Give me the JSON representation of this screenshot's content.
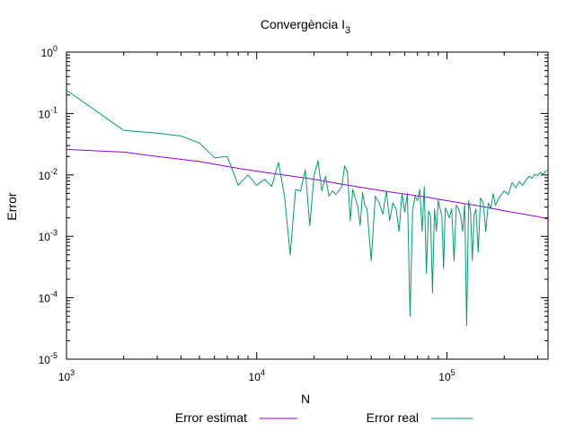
{
  "chart_data": {
    "type": "line",
    "title": "Convergència I",
    "title_subscript": "3",
    "xlabel": "N",
    "ylabel": "Error",
    "x_scale": "log",
    "y_scale": "log",
    "xlim": [
      1000,
      340000
    ],
    "ylim": [
      1e-05,
      1
    ],
    "x_ticks": [
      {
        "value": 1000,
        "base": "10",
        "exp": "3"
      },
      {
        "value": 10000,
        "base": "10",
        "exp": "4"
      },
      {
        "value": 100000,
        "base": "10",
        "exp": "5"
      }
    ],
    "y_ticks": [
      {
        "value": 1,
        "base": "10",
        "exp": "0"
      },
      {
        "value": 0.1,
        "base": "10",
        "exp": "-1"
      },
      {
        "value": 0.01,
        "base": "10",
        "exp": "-2"
      },
      {
        "value": 0.001,
        "base": "10",
        "exp": "-3"
      },
      {
        "value": 0.0001,
        "base": "10",
        "exp": "-4"
      },
      {
        "value": 1e-05,
        "base": "10",
        "exp": "-5"
      }
    ],
    "grid": false,
    "legend_position": "bottom",
    "series": [
      {
        "name": "Error estimat",
        "color": "#9400d3",
        "points": [
          [
            1000,
            0.026
          ],
          [
            2000,
            0.0235
          ],
          [
            3000,
            0.02
          ],
          [
            5000,
            0.0165
          ],
          [
            8000,
            0.0128
          ],
          [
            10000,
            0.0115
          ],
          [
            20000,
            0.0085
          ],
          [
            30000,
            0.0068
          ],
          [
            50000,
            0.0053
          ],
          [
            80000,
            0.0043
          ],
          [
            100000,
            0.0038
          ],
          [
            150000,
            0.0031
          ],
          [
            200000,
            0.0026
          ],
          [
            300000,
            0.0021
          ],
          [
            340000,
            0.0019
          ]
        ]
      },
      {
        "name": "Error real",
        "color": "#009e73",
        "points": [
          [
            1000,
            0.24
          ],
          [
            2000,
            0.053
          ],
          [
            3000,
            0.048
          ],
          [
            4000,
            0.043
          ],
          [
            5000,
            0.033
          ],
          [
            6000,
            0.019
          ],
          [
            7000,
            0.02
          ],
          [
            8000,
            0.0068
          ],
          [
            9000,
            0.01
          ],
          [
            10000,
            0.0068
          ],
          [
            11000,
            0.0085
          ],
          [
            12000,
            0.0065
          ],
          [
            13000,
            0.016
          ],
          [
            14000,
            0.0045
          ],
          [
            15000,
            0.0005
          ],
          [
            16000,
            0.0058
          ],
          [
            17000,
            0.0055
          ],
          [
            18000,
            0.012
          ],
          [
            19000,
            0.0015
          ],
          [
            20000,
            0.0095
          ],
          [
            21000,
            0.017
          ],
          [
            22000,
            0.0055
          ],
          [
            23000,
            0.0095
          ],
          [
            24000,
            0.0045
          ],
          [
            25000,
            0.0055
          ],
          [
            26000,
            0.0048
          ],
          [
            27000,
            0.0055
          ],
          [
            28000,
            0.0065
          ],
          [
            29000,
            0.014
          ],
          [
            30000,
            0.011
          ],
          [
            31000,
            0.0018
          ],
          [
            32000,
            0.0058
          ],
          [
            33000,
            0.0042
          ],
          [
            34000,
            0.003
          ],
          [
            35000,
            0.0015
          ],
          [
            36000,
            0.0052
          ],
          [
            37000,
            0.0032
          ],
          [
            38000,
            0.0028
          ],
          [
            40000,
            0.0004
          ],
          [
            42000,
            0.0045
          ],
          [
            44000,
            0.0035
          ],
          [
            46000,
            0.0023
          ],
          [
            48000,
            0.0055
          ],
          [
            50000,
            0.0018
          ],
          [
            52000,
            0.0035
          ],
          [
            54000,
            0.0028
          ],
          [
            56000,
            0.0012
          ],
          [
            58000,
            0.005
          ],
          [
            60000,
            0.0025
          ],
          [
            62000,
            0.005
          ],
          [
            64000,
            5e-05
          ],
          [
            66000,
            0.0027
          ],
          [
            68000,
            0.0045
          ],
          [
            70000,
            0.0038
          ],
          [
            72000,
            0.0058
          ],
          [
            74000,
            0.0012
          ],
          [
            76000,
            0.0065
          ],
          [
            78000,
            0.00025
          ],
          [
            80000,
            0.0026
          ],
          [
            82000,
            0.0022
          ],
          [
            84000,
            0.00012
          ],
          [
            86000,
            0.0028
          ],
          [
            88000,
            0.0012
          ],
          [
            90000,
            0.0039
          ],
          [
            92000,
            0.0028
          ],
          [
            94000,
            0.0022
          ],
          [
            96000,
            0.0003
          ],
          [
            98000,
            0.0029
          ],
          [
            100000,
            0.0025
          ],
          [
            103000,
            0.002
          ],
          [
            106000,
            0.0028
          ],
          [
            109000,
            0.0004
          ],
          [
            112000,
            0.0032
          ],
          [
            115000,
            0.0028
          ],
          [
            118000,
            0.0022
          ],
          [
            121000,
            0.0012
          ],
          [
            124000,
            0.0034
          ],
          [
            127000,
            3.5e-05
          ],
          [
            130000,
            0.0038
          ],
          [
            133000,
            0.0026
          ],
          [
            136000,
            0.0004
          ],
          [
            139000,
            0.0022
          ],
          [
            142000,
            0.0028
          ],
          [
            146000,
            0.00055
          ],
          [
            150000,
            0.0042
          ],
          [
            155000,
            0.0035
          ],
          [
            160000,
            0.0012
          ],
          [
            165000,
            0.0035
          ],
          [
            170000,
            0.0028
          ],
          [
            175000,
            0.005
          ],
          [
            180000,
            0.0032
          ],
          [
            190000,
            0.0045
          ],
          [
            200000,
            0.0055
          ],
          [
            210000,
            0.0048
          ],
          [
            220000,
            0.0075
          ],
          [
            230000,
            0.0062
          ],
          [
            240000,
            0.0078
          ],
          [
            250000,
            0.0068
          ],
          [
            260000,
            0.0082
          ],
          [
            270000,
            0.0095
          ],
          [
            280000,
            0.0088
          ],
          [
            290000,
            0.0102
          ],
          [
            300000,
            0.0098
          ],
          [
            310000,
            0.011
          ],
          [
            320000,
            0.0102
          ],
          [
            330000,
            0.0115
          ],
          [
            340000,
            0.012
          ]
        ]
      }
    ]
  }
}
